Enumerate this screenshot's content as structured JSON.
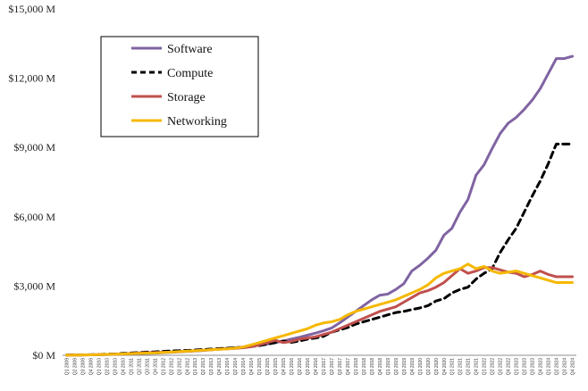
{
  "chart_data": {
    "type": "line",
    "title": "",
    "xlabel": "",
    "ylabel": "",
    "ylim": [
      0,
      15000
    ],
    "y_unit": "M",
    "y_ticks": [
      0,
      3000,
      6000,
      9000,
      12000,
      15000
    ],
    "y_tick_labels": [
      "$0 M",
      "$3,000 M",
      "$6,000 M",
      "$9,000 M",
      "$12,000 M",
      "$15,000 M"
    ],
    "grid": false,
    "legend_position": "top-left",
    "categories": [
      "Q1 2009",
      "Q2 2009",
      "Q3 2009",
      "Q4 2009",
      "Q1 2010",
      "Q2 2010",
      "Q3 2010",
      "Q4 2010",
      "Q1 2011",
      "Q2 2011",
      "Q3 2011",
      "Q4 2011",
      "Q1 2012",
      "Q2 2012",
      "Q3 2012",
      "Q4 2012",
      "Q1 2013",
      "Q2 2013",
      "Q3 2013",
      "Q4 2013",
      "Q1 2014",
      "Q2 2014",
      "Q3 2014",
      "Q4 2014",
      "Q1 2015",
      "Q2 2015",
      "Q3 2015",
      "Q4 2015",
      "Q1 2016",
      "Q2 2016",
      "Q3 2016",
      "Q4 2016",
      "Q1 2017",
      "Q2 2017",
      "Q3 2017",
      "Q4 2017",
      "Q1 2018",
      "Q2 2018",
      "Q3 2018",
      "Q4 2018",
      "Q1 2019",
      "Q2 2019",
      "Q3 2019",
      "Q4 2019",
      "Q1 2020",
      "Q2 2020",
      "Q3 2020",
      "Q4 2020",
      "Q1 2021",
      "Q2 2021",
      "Q3 2021",
      "Q4 2021",
      "Q1 2022",
      "Q2 2022",
      "Q3 2022",
      "Q4 2022",
      "Q1 2023",
      "Q2 2023",
      "Q3 2023",
      "Q4 2023",
      "Q1 2024",
      "Q2 2024",
      "Q3 2024",
      "Q4 2024"
    ],
    "series": [
      {
        "name": "Software",
        "color": "#8064A2",
        "dash": "solid",
        "values": [
          5,
          10,
          15,
          20,
          25,
          30,
          40,
          50,
          60,
          70,
          80,
          90,
          110,
          130,
          150,
          170,
          190,
          210,
          240,
          270,
          300,
          330,
          360,
          400,
          440,
          490,
          550,
          620,
          700,
          780,
          870,
          960,
          1060,
          1180,
          1400,
          1650,
          1900,
          2150,
          2400,
          2600,
          2650,
          2850,
          3100,
          3650,
          3900,
          4200,
          4550,
          5200,
          5500,
          6200,
          6750,
          7800,
          8250,
          8950,
          9600,
          10050,
          10300,
          10650,
          11050,
          11550,
          12200,
          12850,
          12850,
          12950
        ]
      },
      {
        "name": "Compute",
        "color": "#000000",
        "dash": "dashed",
        "values": [
          10,
          15,
          20,
          25,
          35,
          50,
          60,
          80,
          100,
          120,
          140,
          150,
          170,
          190,
          200,
          210,
          230,
          250,
          270,
          290,
          310,
          330,
          350,
          380,
          420,
          480,
          550,
          620,
          560,
          620,
          700,
          750,
          820,
          1000,
          1100,
          1200,
          1350,
          1450,
          1550,
          1650,
          1750,
          1850,
          1900,
          1980,
          2050,
          2150,
          2350,
          2450,
          2700,
          2850,
          2950,
          3300,
          3550,
          3750,
          4450,
          5000,
          5500,
          6200,
          6900,
          7550,
          8300,
          9150,
          9150,
          9150
        ]
      },
      {
        "name": "Storage",
        "color": "#C0504D",
        "dash": "solid",
        "values": [
          5,
          10,
          15,
          20,
          30,
          40,
          50,
          60,
          80,
          100,
          110,
          120,
          130,
          140,
          160,
          180,
          200,
          220,
          240,
          260,
          280,
          300,
          330,
          370,
          450,
          550,
          650,
          550,
          600,
          700,
          750,
          800,
          900,
          1000,
          1150,
          1300,
          1450,
          1600,
          1750,
          1900,
          2000,
          2100,
          2300,
          2500,
          2700,
          2800,
          2950,
          3150,
          3450,
          3750,
          3550,
          3650,
          3800,
          3800,
          3700,
          3600,
          3550,
          3400,
          3500,
          3650,
          3500,
          3400,
          3400,
          3400
        ]
      },
      {
        "name": "Networking",
        "color": "#F5B800",
        "dash": "solid",
        "values": [
          5,
          10,
          15,
          20,
          30,
          40,
          50,
          60,
          70,
          80,
          90,
          100,
          120,
          140,
          160,
          180,
          200,
          220,
          240,
          260,
          280,
          310,
          360,
          450,
          550,
          650,
          750,
          850,
          950,
          1050,
          1150,
          1300,
          1400,
          1450,
          1550,
          1750,
          1900,
          2000,
          2100,
          2200,
          2300,
          2400,
          2550,
          2700,
          2850,
          3050,
          3350,
          3550,
          3650,
          3750,
          3950,
          3750,
          3850,
          3650,
          3550,
          3600,
          3650,
          3550,
          3450,
          3350,
          3250,
          3150,
          3150,
          3150
        ]
      }
    ]
  }
}
